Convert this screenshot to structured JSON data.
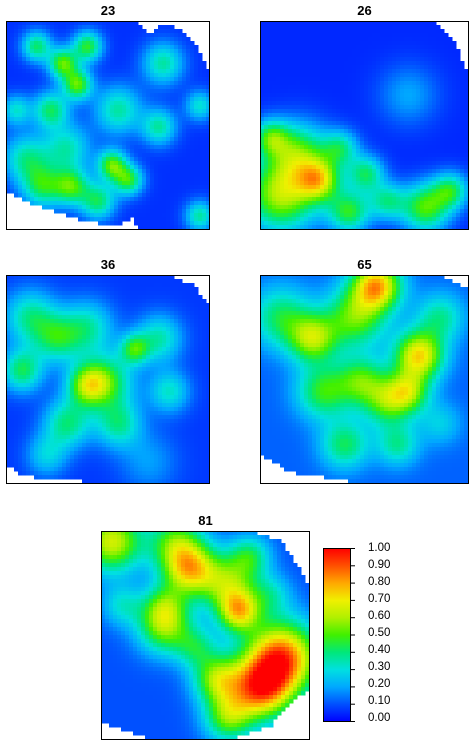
{
  "chart_data": {
    "type": "heatmap",
    "panels": [
      {
        "title": "23",
        "base_value": 0.06,
        "hotspots": [
          [
            0.15,
            0.12,
            0.05,
            0.35
          ],
          [
            0.28,
            0.2,
            0.05,
            0.45
          ],
          [
            0.4,
            0.12,
            0.05,
            0.4
          ],
          [
            0.35,
            0.3,
            0.05,
            0.45
          ],
          [
            0.22,
            0.42,
            0.06,
            0.35
          ],
          [
            0.3,
            0.6,
            0.08,
            0.28
          ],
          [
            0.1,
            0.65,
            0.08,
            0.3
          ],
          [
            0.18,
            0.78,
            0.07,
            0.35
          ],
          [
            0.32,
            0.78,
            0.06,
            0.4
          ],
          [
            0.45,
            0.85,
            0.06,
            0.35
          ],
          [
            0.52,
            0.68,
            0.05,
            0.45
          ],
          [
            0.55,
            0.42,
            0.08,
            0.3
          ],
          [
            0.75,
            0.5,
            0.06,
            0.3
          ],
          [
            0.77,
            0.2,
            0.07,
            0.3
          ],
          [
            0.6,
            0.75,
            0.05,
            0.4
          ],
          [
            0.95,
            0.4,
            0.05,
            0.25
          ],
          [
            0.95,
            0.92,
            0.05,
            0.3
          ],
          [
            0.05,
            0.42,
            0.05,
            0.25
          ]
        ],
        "mask": [
          [
            0,
            0
          ],
          [
            0.65,
            0
          ],
          [
            0.7,
            0.07
          ],
          [
            0.75,
            0.02
          ],
          [
            0.85,
            0.03
          ],
          [
            0.93,
            0.12
          ],
          [
            1,
            0.25
          ],
          [
            1,
            1
          ],
          [
            0.66,
            1
          ],
          [
            0.62,
            0.93
          ],
          [
            0.55,
            0.96
          ],
          [
            0.4,
            0.95
          ],
          [
            0.25,
            0.9
          ],
          [
            0.1,
            0.85
          ],
          [
            0,
            0.8
          ]
        ]
      },
      {
        "title": "26",
        "base_value": 0.05,
        "hotspots": [
          [
            0.1,
            0.82,
            0.12,
            0.55
          ],
          [
            0.18,
            0.62,
            0.1,
            0.4
          ],
          [
            0.28,
            0.75,
            0.07,
            0.5
          ],
          [
            0.05,
            0.55,
            0.06,
            0.35
          ],
          [
            0.38,
            0.6,
            0.06,
            0.3
          ],
          [
            0.5,
            0.72,
            0.06,
            0.35
          ],
          [
            0.6,
            0.85,
            0.06,
            0.3
          ],
          [
            0.42,
            0.9,
            0.07,
            0.4
          ],
          [
            0.78,
            0.88,
            0.08,
            0.45
          ],
          [
            0.9,
            0.8,
            0.06,
            0.35
          ],
          [
            0.7,
            0.35,
            0.1,
            0.15
          ]
        ],
        "mask": [
          [
            0,
            0
          ],
          [
            0.82,
            0
          ],
          [
            0.92,
            0.1
          ],
          [
            1,
            0.3
          ],
          [
            1,
            1
          ],
          [
            0,
            1
          ]
        ]
      },
      {
        "title": "36",
        "base_value": 0.07,
        "hotspots": [
          [
            0.12,
            0.2,
            0.09,
            0.3
          ],
          [
            0.08,
            0.45,
            0.07,
            0.35
          ],
          [
            0.25,
            0.3,
            0.08,
            0.3
          ],
          [
            0.4,
            0.25,
            0.09,
            0.28
          ],
          [
            0.5,
            0.5,
            0.09,
            0.35
          ],
          [
            0.4,
            0.52,
            0.07,
            0.45
          ],
          [
            0.55,
            0.7,
            0.08,
            0.3
          ],
          [
            0.3,
            0.7,
            0.08,
            0.32
          ],
          [
            0.75,
            0.3,
            0.08,
            0.28
          ],
          [
            0.8,
            0.55,
            0.07,
            0.25
          ],
          [
            0.7,
            0.88,
            0.1,
            0.12
          ],
          [
            0.2,
            0.85,
            0.07,
            0.2
          ],
          [
            0.63,
            0.35,
            0.05,
            0.35
          ]
        ],
        "mask": [
          [
            0,
            0
          ],
          [
            0.8,
            0
          ],
          [
            0.92,
            0.05
          ],
          [
            1,
            0.15
          ],
          [
            1,
            1
          ],
          [
            0.65,
            1
          ],
          [
            0.35,
            0.97
          ],
          [
            0.1,
            0.95
          ],
          [
            0,
            0.9
          ]
        ]
      },
      {
        "title": "65",
        "base_value": 0.12,
        "hotspots": [
          [
            0.55,
            0.05,
            0.08,
            0.65
          ],
          [
            0.45,
            0.2,
            0.1,
            0.4
          ],
          [
            0.25,
            0.3,
            0.08,
            0.45
          ],
          [
            0.1,
            0.2,
            0.1,
            0.3
          ],
          [
            0.3,
            0.55,
            0.09,
            0.35
          ],
          [
            0.48,
            0.5,
            0.08,
            0.35
          ],
          [
            0.6,
            0.6,
            0.08,
            0.35
          ],
          [
            0.75,
            0.38,
            0.08,
            0.6
          ],
          [
            0.7,
            0.55,
            0.07,
            0.4
          ],
          [
            0.85,
            0.2,
            0.08,
            0.25
          ],
          [
            0.4,
            0.8,
            0.08,
            0.3
          ],
          [
            0.65,
            0.8,
            0.07,
            0.25
          ],
          [
            0.85,
            0.7,
            0.07,
            0.15
          ]
        ],
        "mask": [
          [
            0,
            0
          ],
          [
            0.85,
            0
          ],
          [
            1,
            0.08
          ],
          [
            1,
            1
          ],
          [
            0.75,
            1
          ],
          [
            0.4,
            0.97
          ],
          [
            0.15,
            0.93
          ],
          [
            0,
            0.85
          ]
        ]
      },
      {
        "title": "81",
        "base_value": 0.1,
        "hotspots": [
          [
            0.05,
            0.05,
            0.1,
            0.55
          ],
          [
            0.42,
            0.18,
            0.09,
            0.6
          ],
          [
            0.35,
            0.05,
            0.09,
            0.35
          ],
          [
            0.6,
            0.25,
            0.09,
            0.4
          ],
          [
            0.7,
            0.12,
            0.07,
            0.3
          ],
          [
            0.65,
            0.38,
            0.07,
            0.55
          ],
          [
            0.3,
            0.45,
            0.09,
            0.45
          ],
          [
            0.3,
            0.35,
            0.07,
            0.25
          ],
          [
            0.85,
            0.6,
            0.12,
            0.8
          ],
          [
            0.75,
            0.75,
            0.1,
            0.65
          ],
          [
            0.55,
            0.7,
            0.08,
            0.45
          ],
          [
            0.6,
            0.88,
            0.08,
            0.4
          ],
          [
            0.45,
            0.55,
            0.07,
            0.25
          ],
          [
            0.1,
            0.35,
            0.07,
            0.2
          ],
          [
            0.8,
            0.3,
            0.07,
            0.2
          ]
        ],
        "mask": [
          [
            0,
            0
          ],
          [
            0.7,
            0
          ],
          [
            0.85,
            0.05
          ],
          [
            0.92,
            0.15
          ],
          [
            1,
            0.3
          ],
          [
            1,
            0.75
          ],
          [
            0.9,
            0.8
          ],
          [
            0.8,
            0.92
          ],
          [
            0.55,
            1
          ],
          [
            0.3,
            1
          ],
          [
            0.15,
            0.95
          ],
          [
            0,
            0.9
          ]
        ]
      }
    ],
    "colorbar": {
      "min": 0.0,
      "max": 1.0,
      "tick_labels": [
        "1.00",
        "0.90",
        "0.80",
        "0.70",
        "0.60",
        "0.50",
        "0.40",
        "0.30",
        "0.20",
        "0.10",
        "0.00"
      ],
      "colors": [
        "#0000ff",
        "#0050ff",
        "#00a8ff",
        "#00e0e0",
        "#00e87a",
        "#40f000",
        "#b0f000",
        "#f0f000",
        "#ffa800",
        "#ff5000",
        "#ff0000"
      ]
    }
  }
}
